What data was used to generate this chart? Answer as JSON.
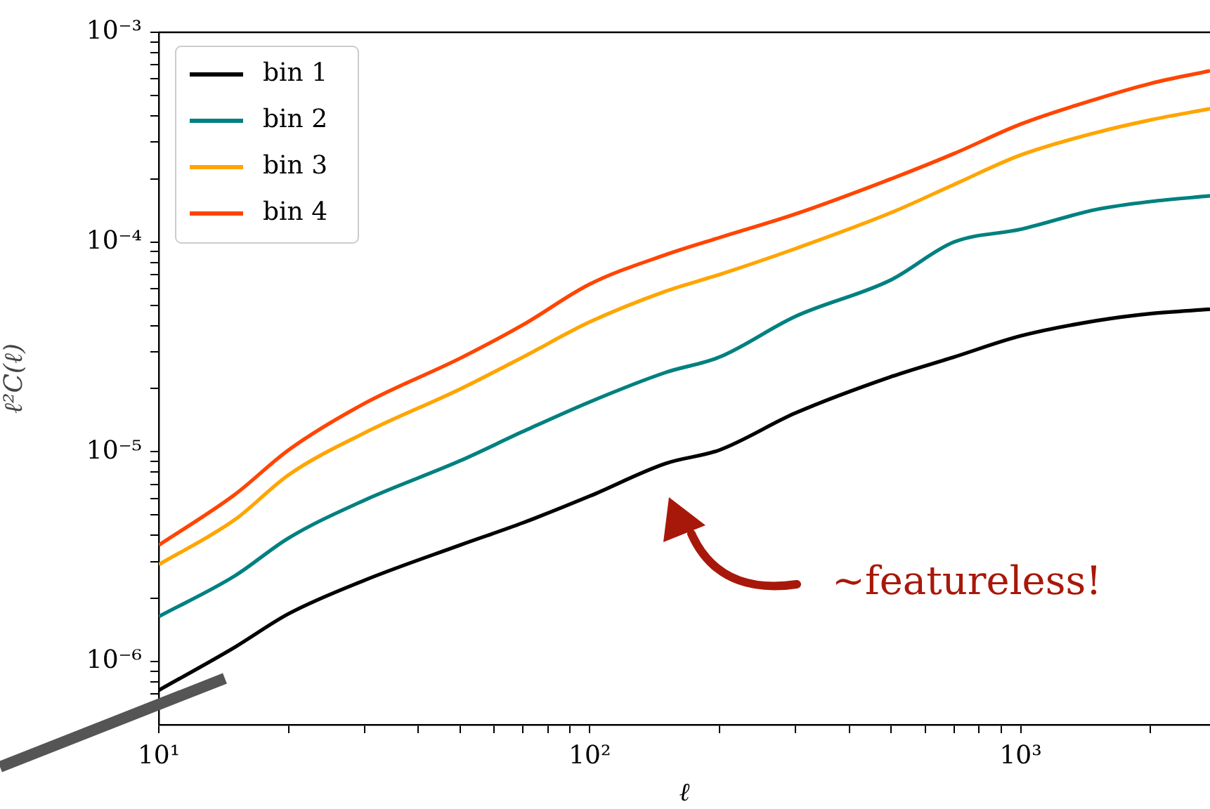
{
  "chart_data": {
    "type": "line",
    "xlabel": "ℓ",
    "ylabel": "ℓ²C(ℓ)",
    "log": "xy",
    "grid": false,
    "legend": "top left",
    "marker": "none",
    "line_style": "solid",
    "x": [
      10,
      15,
      20,
      30,
      50,
      70,
      100,
      150,
      200,
      300,
      500,
      700,
      1000,
      1500,
      2000,
      2750
    ],
    "series": [
      {
        "name": "bin 1",
        "color": "#000000",
        "values": [
          7.3e-07,
          1.17e-06,
          1.69e-06,
          2.44e-06,
          3.59e-06,
          4.59e-06,
          6.15e-06,
          8.8e-06,
          1.02e-05,
          1.53e-05,
          2.28e-05,
          2.83e-05,
          3.57e-05,
          4.22e-05,
          4.56e-05,
          4.78e-05
        ]
      },
      {
        "name": "bin 2",
        "color": "#008080",
        "values": [
          1.64e-06,
          2.56e-06,
          3.88e-06,
          5.88e-06,
          9.06e-06,
          1.25e-05,
          1.73e-05,
          2.39e-05,
          2.83e-05,
          4.42e-05,
          6.6e-05,
          0.0001,
          0.000115,
          0.000143,
          0.000156,
          0.000166
        ]
      },
      {
        "name": "bin 3",
        "color": "#ffa500",
        "values": [
          2.9e-06,
          4.74e-06,
          7.76e-06,
          1.23e-05,
          1.99e-05,
          2.83e-05,
          4.16e-05,
          5.83e-05,
          7e-05,
          9.3e-05,
          0.000138,
          0.000188,
          0.00026,
          0.000333,
          0.000382,
          0.000432
        ]
      },
      {
        "name": "bin 4",
        "color": "#ff4500",
        "values": [
          3.59e-06,
          6.25e-06,
          1.02e-05,
          1.7e-05,
          2.79e-05,
          4.03e-05,
          6.3e-05,
          8.7e-05,
          0.000105,
          0.000136,
          0.0002,
          0.000264,
          0.000365,
          0.000481,
          0.00057,
          0.000655
        ]
      }
    ],
    "xlim": [
      10,
      2750
    ],
    "xticks": [
      {
        "value": 10,
        "label": "10¹"
      },
      {
        "value": 20,
        "label": null
      },
      {
        "value": 30,
        "label": null
      },
      {
        "value": 40,
        "label": null
      },
      {
        "value": 50,
        "label": null
      },
      {
        "value": 60,
        "label": null
      },
      {
        "value": 70,
        "label": null
      },
      {
        "value": 80,
        "label": null
      },
      {
        "value": 90,
        "label": null
      },
      {
        "value": 100,
        "label": "10²"
      },
      {
        "value": 200,
        "label": null
      },
      {
        "value": 300,
        "label": null
      },
      {
        "value": 400,
        "label": null
      },
      {
        "value": 500,
        "label": null
      },
      {
        "value": 600,
        "label": null
      },
      {
        "value": 700,
        "label": null
      },
      {
        "value": 800,
        "label": null
      },
      {
        "value": 900,
        "label": null
      },
      {
        "value": 1000,
        "label": "10³"
      },
      {
        "value": 2000,
        "label": null
      }
    ],
    "ylim": [
      5e-07,
      0.001
    ],
    "yticks": [
      {
        "value": 6e-07,
        "label": null
      },
      {
        "value": 7e-07,
        "label": null
      },
      {
        "value": 8e-07,
        "label": null
      },
      {
        "value": 9e-07,
        "label": null
      },
      {
        "value": 1e-06,
        "label": "10⁻⁶"
      },
      {
        "value": 2e-06,
        "label": null
      },
      {
        "value": 3e-06,
        "label": null
      },
      {
        "value": 4e-06,
        "label": null
      },
      {
        "value": 5e-06,
        "label": null
      },
      {
        "value": 6e-06,
        "label": null
      },
      {
        "value": 7e-06,
        "label": null
      },
      {
        "value": 8e-06,
        "label": null
      },
      {
        "value": 9e-06,
        "label": null
      },
      {
        "value": 1e-05,
        "label": "10⁻⁵"
      },
      {
        "value": 2e-05,
        "label": null
      },
      {
        "value": 3e-05,
        "label": null
      },
      {
        "value": 4e-05,
        "label": null
      },
      {
        "value": 5e-05,
        "label": null
      },
      {
        "value": 6e-05,
        "label": null
      },
      {
        "value": 7e-05,
        "label": null
      },
      {
        "value": 8e-05,
        "label": null
      },
      {
        "value": 9e-05,
        "label": null
      },
      {
        "value": 0.0001,
        "label": "10⁻⁴"
      },
      {
        "value": 0.0002,
        "label": null
      },
      {
        "value": 0.0003,
        "label": null
      },
      {
        "value": 0.0004,
        "label": null
      },
      {
        "value": 0.0005,
        "label": null
      },
      {
        "value": 0.0006,
        "label": null
      },
      {
        "value": 0.0007,
        "label": null
      },
      {
        "value": 0.0008,
        "label": null
      },
      {
        "value": 0.0009,
        "label": null
      },
      {
        "value": 0.001,
        "label": "10⁻³"
      }
    ],
    "annotations": [
      "~featureless!"
    ]
  }
}
